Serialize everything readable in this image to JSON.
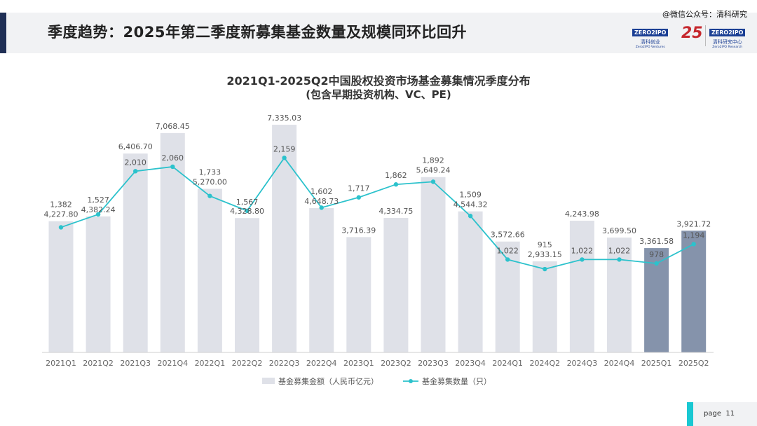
{
  "page": {
    "title": "季度趋势：2025年第二季度新募集基金数量及规模同环比回升",
    "watermark": "@微信公众号：清科研究",
    "page_label": "page",
    "page_number": "11"
  },
  "logos": {
    "logo1_main": "ZERO2IPO",
    "logo1_sub": "清科创业",
    "logo1_sub2": "Zero2IPO Ventures",
    "logo_anniv": "25",
    "logo2_main": "ZERO2IPO",
    "logo2_sub": "清科研究中心",
    "logo2_sub2": "Zero2IPO Research"
  },
  "chart_data": {
    "type": "bar",
    "title": "2021Q1-2025Q2中国股权投资市场基金募集情况季度分布",
    "subtitle": "(包含早期投资机构、VC、PE)",
    "categories": [
      "2021Q1",
      "2021Q2",
      "2021Q3",
      "2021Q4",
      "2022Q1",
      "2022Q2",
      "2022Q3",
      "2022Q4",
      "2023Q1",
      "2023Q2",
      "2023Q3",
      "2023Q4",
      "2024Q1",
      "2024Q2",
      "2024Q3",
      "2024Q4",
      "2025Q1",
      "2025Q2"
    ],
    "series": [
      {
        "name": "基金募集金额（人民币亿元）",
        "type": "bar",
        "values": [
          4227.8,
          4382.24,
          6406.7,
          7068.45,
          5270.0,
          4328.8,
          7335.03,
          4648.73,
          3716.39,
          4334.75,
          5649.24,
          4544.32,
          3572.66,
          2933.15,
          4243.98,
          3699.5,
          3361.58,
          3921.72
        ],
        "labels": [
          "4,227.80",
          "4,382.24",
          "6,406.70",
          "7,068.45",
          "5,270.00",
          "4,328.80",
          "7,335.03",
          "4,648.73",
          "3,716.39",
          "4,334.75",
          "5,649.24",
          "4,544.32",
          "3,572.66",
          "2,933.15",
          "4,243.98",
          "3,699.50",
          "3,361.58",
          "3,921.72"
        ]
      },
      {
        "name": "基金募集数量（只）",
        "type": "line",
        "values": [
          1382,
          1527,
          2010,
          2060,
          1733,
          1567,
          2159,
          1602,
          1717,
          1862,
          1892,
          1509,
          1022,
          915,
          1022,
          1022,
          978,
          1194
        ],
        "labels": [
          "1,382",
          "1,527",
          "2,010",
          "2,060",
          "1,733",
          "1,567",
          "2,159",
          "1,602",
          "1,717",
          "1,862",
          "1,892",
          "1,509",
          "1,022",
          "915",
          "1,022",
          "1,022",
          "978",
          "1,194"
        ]
      }
    ],
    "colors": {
      "bar": "#dfe1e8",
      "bar_highlight": "#8593ab",
      "line": "#2cc2cc",
      "label": "#555555"
    },
    "highlight_categories": [
      "2025Q1",
      "2025Q2"
    ],
    "legend_position": "bottom",
    "grid": false
  }
}
